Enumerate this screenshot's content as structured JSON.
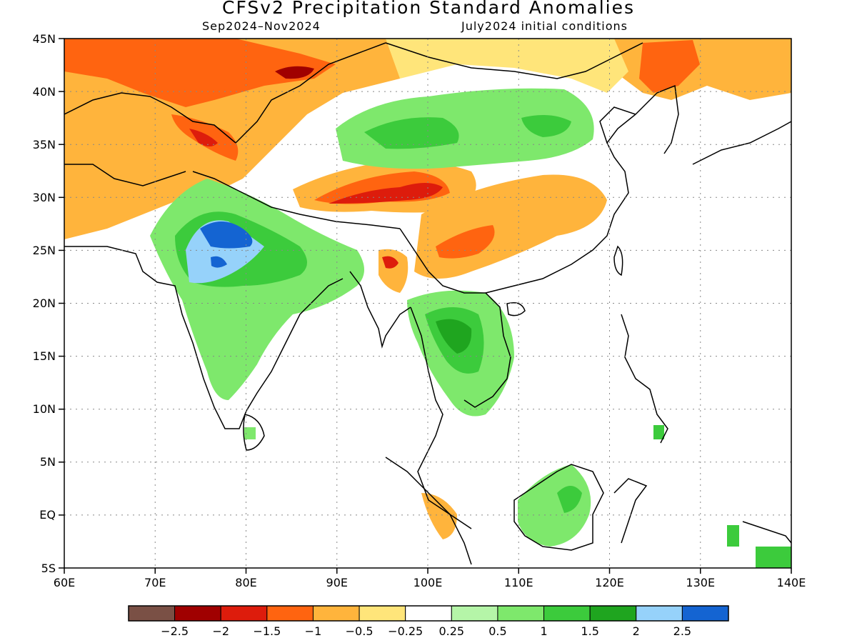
{
  "map": {
    "title": "CFSv2 Precipitation Standard Anomalies",
    "period": "Sep2024–Nov2024",
    "initial_conditions": "July2024 initial conditions",
    "region": "South and East Asia",
    "lon_range": [
      60,
      140
    ],
    "lat_range": [
      -5,
      45
    ],
    "lon_ticks": [
      "60E",
      "70E",
      "80E",
      "90E",
      "100E",
      "110E",
      "120E",
      "130E",
      "140E"
    ],
    "lat_ticks": [
      "45N",
      "40N",
      "35N",
      "30N",
      "25N",
      "20N",
      "15N",
      "10N",
      "5N",
      "EQ",
      "5S"
    ],
    "grid": "dotted",
    "colorbar": {
      "colors": [
        "#7a5045",
        "#a00000",
        "#dd1c0c",
        "#ff6410",
        "#ffb43c",
        "#ffe57a",
        "#ffffff",
        "#b5f5a8",
        "#7ee86c",
        "#3ccb3c",
        "#1fa51f",
        "#96d2fa",
        "#1464d2"
      ],
      "labels": [
        "−2.5",
        "−2",
        "−1.5",
        "−1",
        "−0.5",
        "−0.25",
        "0.25",
        "0.5",
        "1",
        "1.5",
        "2",
        "2.5"
      ]
    }
  }
}
